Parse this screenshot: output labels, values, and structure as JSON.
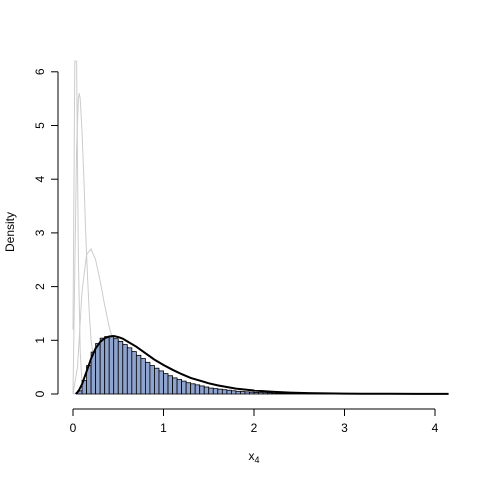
{
  "chart_data": {
    "type": "bar",
    "xlabel": "x",
    "xlabel_subscript": "4",
    "ylabel": "Density",
    "xlim": [
      0,
      4.15
    ],
    "ylim": [
      0,
      6
    ],
    "x_ticks": [
      0,
      1,
      2,
      3,
      4
    ],
    "y_ticks": [
      0,
      1,
      2,
      3,
      4,
      5,
      6
    ],
    "bin_width": 0.05,
    "bin_start": 0.05,
    "bar_color": "#8fa3cf",
    "density_color": "#000000",
    "component_color": "#cccccc",
    "histogram": [
      0.06,
      0.25,
      0.53,
      0.78,
      0.94,
      1.04,
      1.07,
      1.07,
      1.03,
      0.98,
      0.92,
      0.86,
      0.79,
      0.72,
      0.66,
      0.59,
      0.53,
      0.48,
      0.43,
      0.38,
      0.34,
      0.3,
      0.27,
      0.24,
      0.21,
      0.19,
      0.17,
      0.15,
      0.13,
      0.11,
      0.1,
      0.09,
      0.08,
      0.07,
      0.06,
      0.05,
      0.045,
      0.04,
      0.035,
      0.03,
      0.026,
      0.023,
      0.02,
      0.017,
      0.015,
      0.013,
      0.011,
      0.01,
      0.009,
      0.008,
      0.007,
      0.006,
      0.005,
      0.004,
      0.004,
      0.003,
      0.003,
      0.002,
      0.002,
      0.002
    ],
    "density_curve": {
      "x": [
        0.03,
        0.06,
        0.1,
        0.15,
        0.2,
        0.25,
        0.3,
        0.35,
        0.4,
        0.45,
        0.5,
        0.55,
        0.6,
        0.7,
        0.8,
        0.9,
        1.0,
        1.1,
        1.2,
        1.3,
        1.4,
        1.5,
        1.6,
        1.8,
        2.0,
        2.2,
        2.4,
        2.6,
        2.8,
        3.0,
        3.2,
        3.5,
        3.8,
        4.15
      ],
      "y": [
        0.0,
        0.05,
        0.18,
        0.42,
        0.66,
        0.85,
        0.97,
        1.04,
        1.07,
        1.08,
        1.06,
        1.03,
        0.98,
        0.88,
        0.76,
        0.64,
        0.54,
        0.45,
        0.37,
        0.3,
        0.25,
        0.2,
        0.16,
        0.1,
        0.065,
        0.042,
        0.027,
        0.017,
        0.011,
        0.007,
        0.005,
        0.003,
        0.002,
        0.001
      ]
    },
    "components": [
      {
        "x": [
          0.0,
          0.02,
          0.04,
          0.06,
          0.07,
          0.08,
          0.1,
          0.12,
          0.14,
          0.16,
          0.18,
          0.2,
          0.25,
          0.3,
          0.35,
          0.4,
          0.5
        ],
        "y": [
          0.0,
          2.3,
          4.6,
          5.5,
          5.6,
          5.5,
          4.9,
          4.0,
          3.0,
          2.2,
          1.5,
          1.0,
          0.4,
          0.15,
          0.06,
          0.02,
          0.0
        ]
      },
      {
        "x": [
          0.0,
          0.05,
          0.1,
          0.15,
          0.2,
          0.25,
          0.3,
          0.35,
          0.4,
          0.5,
          0.6,
          0.7,
          0.8,
          0.9,
          1.0,
          1.2
        ],
        "y": [
          0.0,
          0.5,
          1.9,
          2.6,
          2.7,
          2.5,
          2.1,
          1.65,
          1.25,
          0.65,
          0.3,
          0.13,
          0.05,
          0.02,
          0.01,
          0.0
        ]
      },
      {
        "x": [
          0.0,
          0.1,
          0.2,
          0.3,
          0.4,
          0.45,
          0.5,
          0.6,
          0.7,
          0.8,
          0.9,
          1.0,
          1.2,
          1.4,
          1.6,
          1.8,
          2.0
        ],
        "y": [
          0.0,
          0.05,
          0.35,
          0.75,
          1.0,
          1.03,
          1.0,
          0.88,
          0.72,
          0.56,
          0.42,
          0.31,
          0.16,
          0.08,
          0.04,
          0.02,
          0.01
        ]
      },
      {
        "x": [
          0.0,
          0.02,
          0.04,
          0.06,
          0.08,
          0.1,
          0.12
        ],
        "y": [
          1.2,
          6.2,
          6.2,
          2.5,
          0.8,
          0.2,
          0.0
        ]
      }
    ]
  }
}
